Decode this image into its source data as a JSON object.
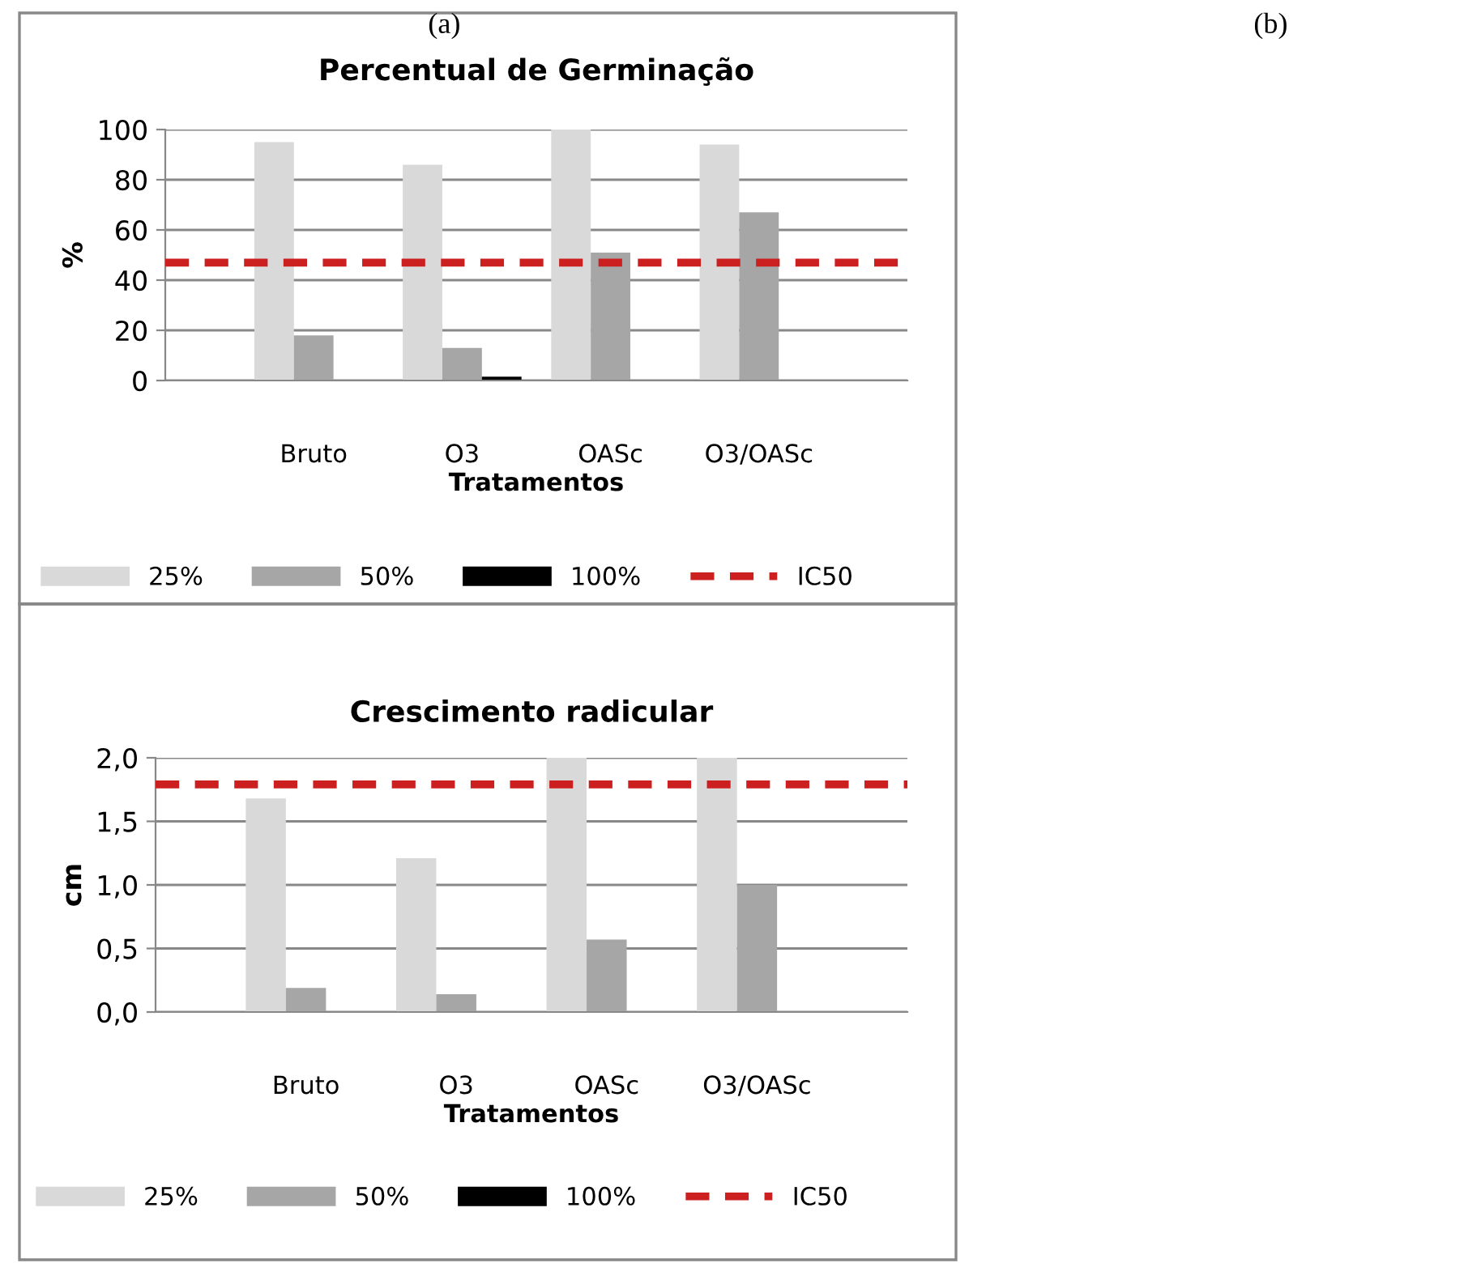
{
  "chart_data": [
    {
      "type": "bar",
      "title": "Percentual de Germinação",
      "xlabel": "Tratamentos",
      "ylabel": "%",
      "categories": [
        "Bruto",
        "O3",
        "OASc",
        "O3/OASc"
      ],
      "series": [
        {
          "name": "25%",
          "color": "#d9d9d9",
          "values": [
            95,
            86,
            100,
            94
          ]
        },
        {
          "name": "50%",
          "color": "#a6a6a6",
          "values": [
            18,
            13,
            51,
            67
          ]
        },
        {
          "name": "100%",
          "color": "#000000",
          "values": [
            0,
            1.5,
            0,
            0
          ]
        }
      ],
      "ref_lines": [
        {
          "axis": "y",
          "value": 47,
          "label": "IC50",
          "color": "#cc1f1f",
          "line_style": "dashed"
        }
      ],
      "ylim": [
        0,
        100
      ],
      "yticks": [
        0,
        20,
        40,
        60,
        80,
        100
      ],
      "grid": "y",
      "legend": "bottom",
      "annotations": [
        "(a)",
        "(b)"
      ]
    },
    {
      "type": "bar",
      "title": "Crescimento radicular",
      "xlabel": "Tratamentos",
      "ylabel": "cm",
      "categories": [
        "Bruto",
        "O3",
        "OASc",
        "O3/OASc"
      ],
      "series": [
        {
          "name": "25%",
          "color": "#d9d9d9",
          "values": [
            1.68,
            1.21,
            2.0,
            2.0
          ]
        },
        {
          "name": "50%",
          "color": "#a6a6a6",
          "values": [
            0.19,
            0.14,
            0.57,
            1.0
          ]
        },
        {
          "name": "100%",
          "color": "#000000",
          "values": [
            0,
            0,
            0,
            0
          ]
        }
      ],
      "ref_lines": [
        {
          "axis": "y",
          "value": 1.79,
          "label": "IC50",
          "color": "#cc1f1f",
          "line_style": "dashed"
        }
      ],
      "ylim": [
        0,
        2.0
      ],
      "yticks": [
        {
          "value": 0,
          "label": "0,0"
        },
        {
          "value": 0.5,
          "label": "0,5"
        },
        {
          "value": 1.0,
          "label": "1,0"
        },
        {
          "value": 1.5,
          "label": "1,5"
        },
        {
          "value": 2.0,
          "label": "2,0"
        }
      ],
      "grid": "y",
      "legend": "bottom"
    }
  ]
}
